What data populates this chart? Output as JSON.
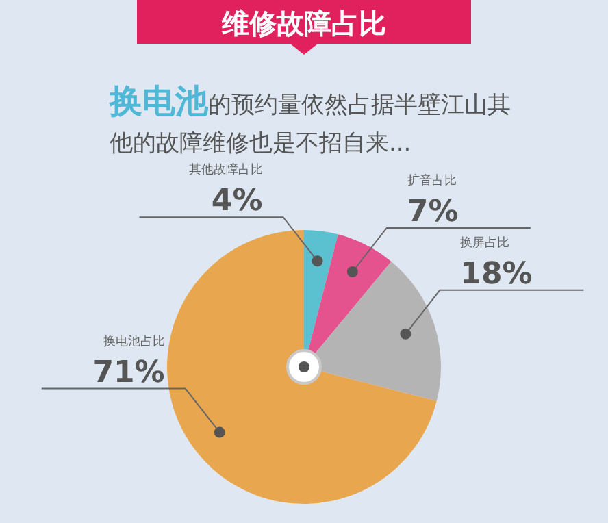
{
  "chart_data": {
    "type": "pie",
    "title": "维修故障占比",
    "subtitle": "**换电池**的预约量依然占据半壁江山其他的故障维修也是不招自来...",
    "categories": [
      "其他故障占比",
      "扩音占比",
      "换屏占比",
      "换电池占比"
    ],
    "values": [
      4,
      7,
      18,
      71
    ],
    "colors": [
      "#5bc0d0",
      "#e5538f",
      "#b4b4b4",
      "#e8a64e"
    ],
    "value_labels": [
      "4%",
      "7%",
      "18%",
      "71%"
    ],
    "legend": false
  }
}
